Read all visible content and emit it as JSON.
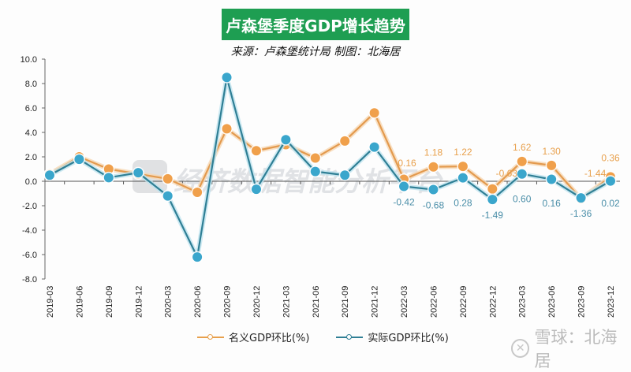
{
  "header": {
    "title": "卢森堡季度GDP增长趋势",
    "subtitle": "来源：卢森堡统计局    制图：北海居"
  },
  "colors": {
    "title_bg": "#1e9e52",
    "nominal": "#f0a04b",
    "real": "#3aa6cc",
    "real_line": "#2f7f95"
  },
  "watermark": "经济数据智能分析平台",
  "footer": {
    "brand_icon": "xueqiu-logo-icon",
    "brand_text": "雪球：北海居"
  },
  "legend": {
    "nominal_label": "名义GDP环比(%)",
    "real_label": "实际GDP环比(%)"
  },
  "chart_data": {
    "type": "line",
    "title": "卢森堡季度GDP增长趋势",
    "subtitle": "来源：卢森堡统计局 制图：北海居",
    "xlabel": "",
    "ylabel": "",
    "ylim": [
      -8.0,
      10.0
    ],
    "yticks": [
      "10.0",
      "8.0",
      "6.0",
      "4.0",
      "2.0",
      "0.0",
      "-2.0",
      "-4.0",
      "-6.0",
      "-8.0"
    ],
    "grid": false,
    "legend_position": "bottom",
    "categories": [
      "2019-03",
      "2019-06",
      "2019-09",
      "2019-12",
      "2020-03",
      "2020-06",
      "2020-09",
      "2020-12",
      "2021-03",
      "2021-06",
      "2021-09",
      "2021-12",
      "2022-03",
      "2022-06",
      "2022-09",
      "2022-12",
      "2023-03",
      "2023-06",
      "2023-09",
      "2023-12"
    ],
    "series": [
      {
        "name": "名义GDP环比(%)",
        "values": [
          0.6,
          2.0,
          1.0,
          0.6,
          0.2,
          -0.9,
          4.3,
          2.5,
          3.0,
          1.9,
          3.3,
          5.6,
          0.16,
          1.18,
          1.22,
          -0.63,
          1.62,
          1.3,
          -1.44,
          0.36
        ],
        "labels": [
          "",
          "",
          "",
          "",
          "",
          "",
          "",
          "",
          "",
          "",
          "",
          "",
          "0.16",
          "1.18",
          "1.22",
          "-0.63",
          "1.62",
          "1.30",
          "-1.44",
          "0.36"
        ]
      },
      {
        "name": "实际GDP环比(%)",
        "values": [
          0.5,
          1.8,
          0.3,
          0.7,
          -1.2,
          -6.2,
          8.5,
          -0.65,
          3.4,
          0.8,
          0.5,
          2.8,
          -0.42,
          -0.68,
          0.28,
          -1.49,
          0.6,
          0.16,
          -1.36,
          0.02
        ],
        "labels": [
          "",
          "",
          "",
          "",
          "",
          "",
          "",
          "",
          "",
          "",
          "",
          "",
          "-0.42",
          "-0.68",
          "0.28",
          "-1.49",
          "0.60",
          "0.16",
          "-1.36",
          "0.02"
        ]
      }
    ]
  }
}
